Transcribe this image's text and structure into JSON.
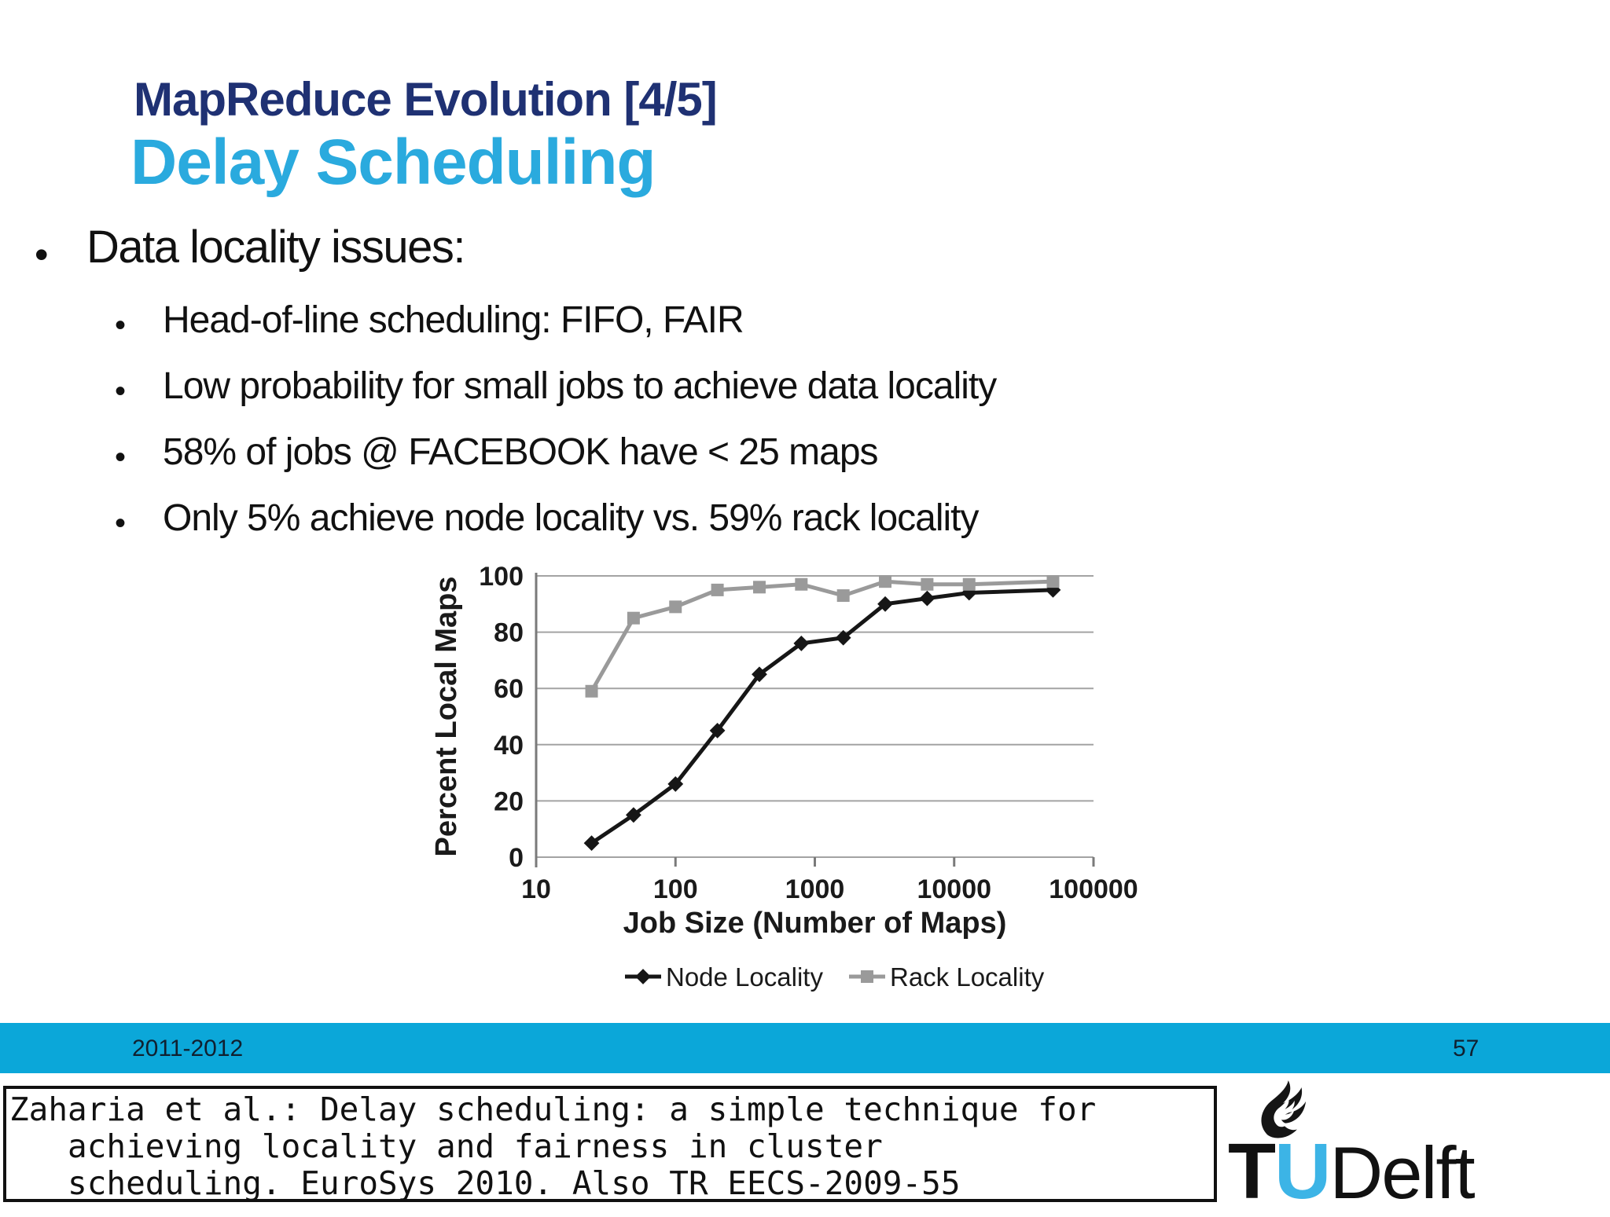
{
  "slide": {
    "kicker": "MapReduce Evolution [4/5]",
    "kicker_color": "#1f3173",
    "title": "Delay Scheduling",
    "title_color": "#2aaade",
    "bullet_glyph": "•",
    "bullets": {
      "main": "Data locality issues:",
      "sub": [
        "Head-of-line scheduling: FIFO, FAIR",
        "Low probability for small jobs to achieve data locality",
        "58% of jobs @ FACEBOOK have < 25 maps",
        "Only 5% achieve node locality vs. 59% rack locality"
      ]
    }
  },
  "chart_data": {
    "type": "line",
    "x": [
      25,
      50,
      100,
      200,
      400,
      800,
      1600,
      3200,
      6400,
      12800,
      51200
    ],
    "series": [
      {
        "name": "Node Locality",
        "color": "#161616",
        "marker": "diamond",
        "values": [
          5,
          15,
          26,
          45,
          65,
          76,
          78,
          90,
          92,
          94,
          95
        ]
      },
      {
        "name": "Rack Locality",
        "color": "#9a9a9a",
        "marker": "square",
        "values": [
          59,
          85,
          89,
          95,
          96,
          97,
          93,
          98,
          97,
          97,
          98
        ]
      }
    ],
    "title": "",
    "xlabel": "Job Size (Number of Maps)",
    "ylabel": "Percent Local Maps",
    "x_scale": "log",
    "xlim": [
      10,
      100000
    ],
    "ylim": [
      0,
      100
    ],
    "x_ticks": [
      10,
      100,
      1000,
      10000,
      100000
    ],
    "y_ticks": [
      0,
      20,
      40,
      60,
      80,
      100
    ],
    "grid": "horizontal",
    "legend_position": "bottom"
  },
  "footer": {
    "period": "2011-2012",
    "page_number": "57",
    "bar_color": "#0ba7d9"
  },
  "citation": {
    "lines": [
      "Zaharia et al.: Delay scheduling: a simple technique for",
      "   achieving locality and fairness in cluster",
      "   scheduling. EuroSys 2010. Also TR EECS-2009-55"
    ]
  },
  "logo": {
    "t": "T",
    "u": "U",
    "rest": "Delft",
    "u_color": "#3cb4e6"
  }
}
